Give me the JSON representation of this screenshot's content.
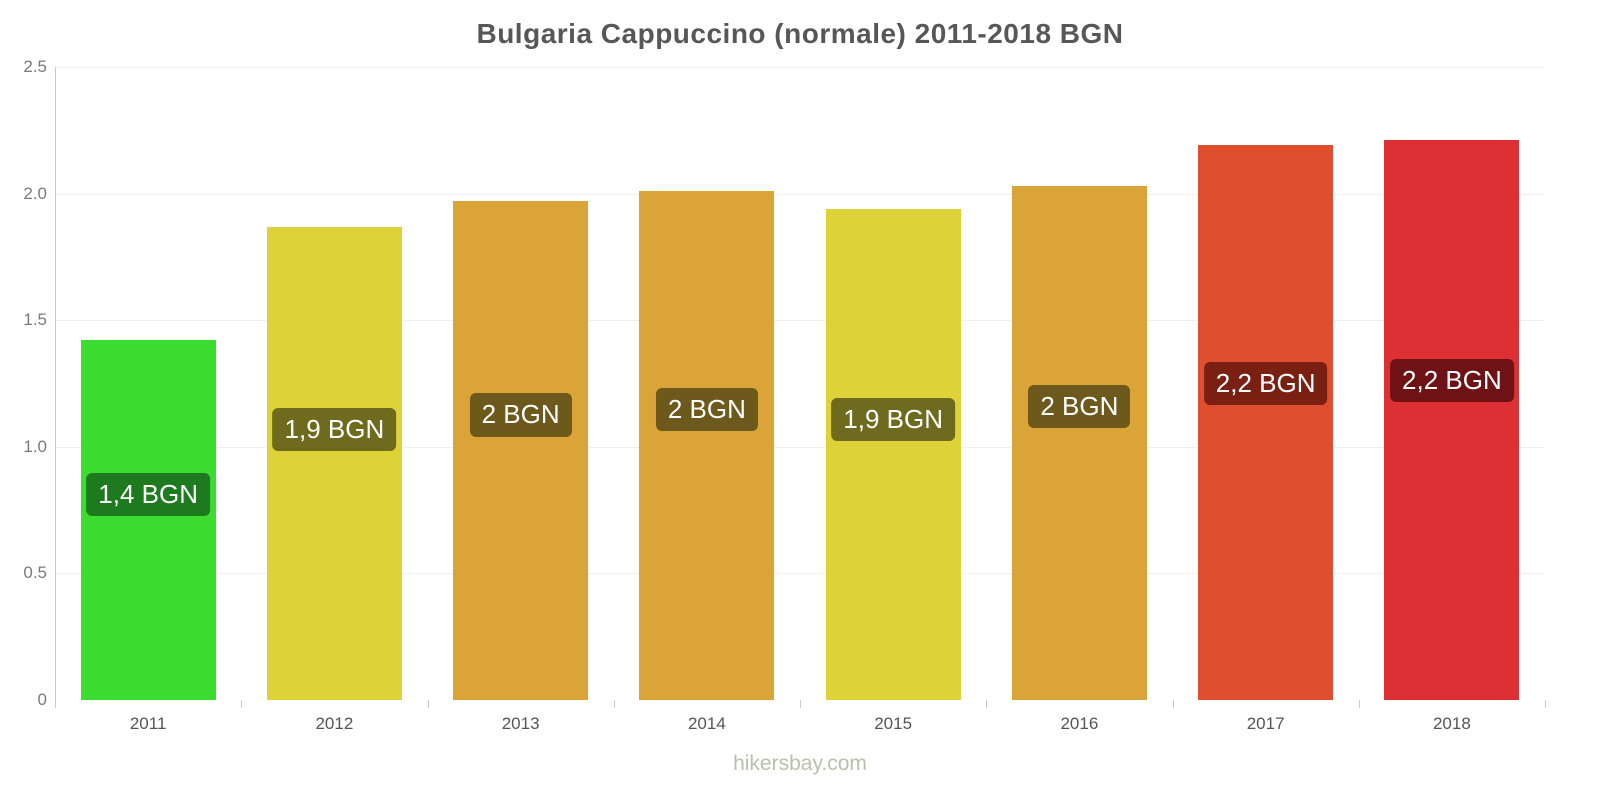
{
  "chart_data": {
    "type": "bar",
    "title": "Bulgaria Cappuccino (normale) 2011-2018 BGN",
    "categories": [
      "2011",
      "2012",
      "2013",
      "2014",
      "2015",
      "2016",
      "2017",
      "2018"
    ],
    "values": [
      1.42,
      1.87,
      1.97,
      2.01,
      1.94,
      2.03,
      2.19,
      2.21
    ],
    "value_labels": [
      "1,4 BGN",
      "1,9 BGN",
      "2 BGN",
      "2 BGN",
      "1,9 BGN",
      "2 BGN",
      "2,2 BGN",
      "2,2 BGN"
    ],
    "bar_colors": [
      "#3ddc30",
      "#ddd338",
      "#dba438",
      "#dba438",
      "#ddd338",
      "#dba438",
      "#df4f2e",
      "#dc3034"
    ],
    "badge_colors": [
      "#1d7a1f",
      "#6f6b1e",
      "#6d591c",
      "#6d591c",
      "#6f6b1e",
      "#6d591c",
      "#7a2012",
      "#6f1216"
    ],
    "ylim": [
      0,
      2.5
    ],
    "yticks": [
      "0",
      "0.5",
      "1.0",
      "1.5",
      "2.0",
      "2.5"
    ],
    "xlabel": "",
    "ylabel": "",
    "legend": false,
    "grid": "faint-horizontal",
    "footer": "hikersbay.com",
    "colors": {
      "title": "#575757",
      "axis": "#c9c9c9",
      "grid": "#f0f0f0",
      "ytick_text": "#7a7a7a",
      "xtick_text": "#555555",
      "footer_text": "#b7c2ab"
    }
  }
}
